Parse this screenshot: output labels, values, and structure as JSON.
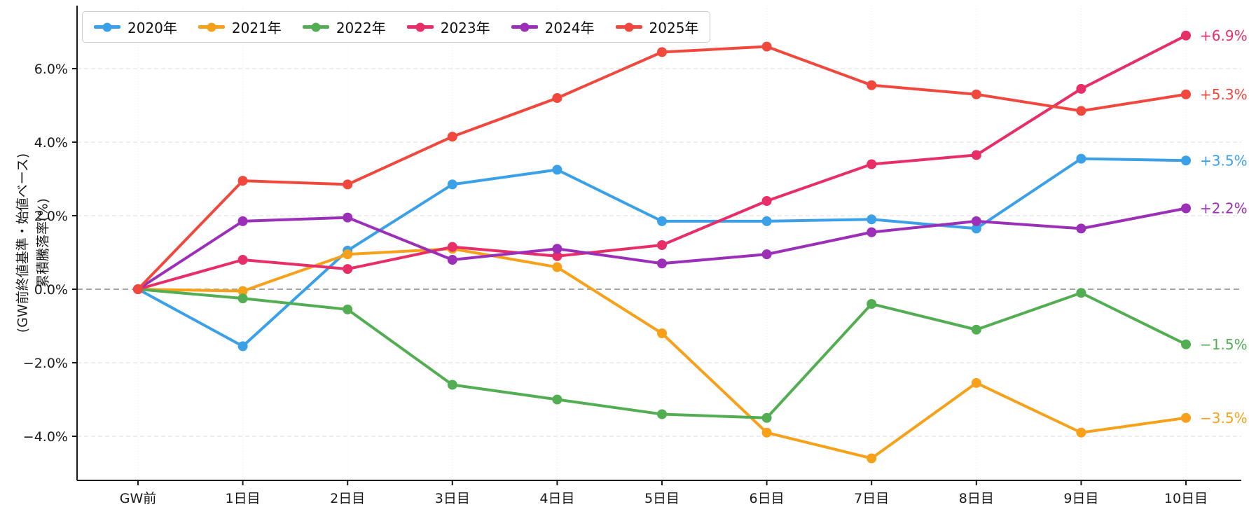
{
  "chart_data": {
    "type": "line",
    "title": "",
    "xlabel": "",
    "ylabel_line1": "累積騰落率(%)",
    "ylabel_line2": "(GW前終値基準・始値ベース)",
    "categories": [
      "GW前",
      "1日目",
      "2日目",
      "3日目",
      "4日目",
      "5日目",
      "6日目",
      "7日目",
      "8日目",
      "9日目",
      "10日目"
    ],
    "yticks": [
      6,
      4,
      2,
      0,
      -2,
      -4
    ],
    "ytick_labels": [
      "6.0%",
      "4.0%",
      "2.0%",
      "0.0%",
      "−2.0%",
      "−4.0%"
    ],
    "ylim": [
      -5.2,
      7.7
    ],
    "grid": true,
    "zero_line": true,
    "legend_position": "top-left",
    "series": [
      {
        "name": "2020年",
        "color": "#3AA0E8",
        "end_label": "+3.5%",
        "values": [
          0.0,
          -1.55,
          1.05,
          2.85,
          3.25,
          1.85,
          1.85,
          1.9,
          1.65,
          3.55,
          3.5
        ]
      },
      {
        "name": "2021年",
        "color": "#F7A11A",
        "end_label": "−3.5%",
        "values": [
          0.0,
          -0.05,
          0.95,
          1.1,
          0.6,
          -1.2,
          -3.9,
          -4.6,
          -2.55,
          -3.9,
          -3.5
        ]
      },
      {
        "name": "2022年",
        "color": "#53AE53",
        "end_label": "−1.5%",
        "values": [
          0.0,
          -0.25,
          -0.55,
          -2.6,
          -3.0,
          -3.4,
          -3.5,
          -0.4,
          -1.1,
          -0.1,
          -1.5
        ]
      },
      {
        "name": "2023年",
        "color": "#E72E66",
        "end_label": "+6.9%",
        "values": [
          0.0,
          0.8,
          0.55,
          1.15,
          0.9,
          1.2,
          2.4,
          3.4,
          3.65,
          5.45,
          6.9
        ]
      },
      {
        "name": "2024年",
        "color": "#9B2FB8",
        "end_label": "+2.2%",
        "values": [
          0.0,
          1.85,
          1.95,
          0.8,
          1.1,
          0.7,
          0.95,
          1.55,
          1.85,
          1.65,
          2.2
        ]
      },
      {
        "name": "2025年",
        "color": "#F0483C",
        "end_label": "+5.3%",
        "values": [
          0.0,
          2.95,
          2.85,
          4.15,
          5.2,
          6.45,
          6.6,
          5.55,
          5.3,
          4.85,
          5.3
        ]
      }
    ],
    "colors": {
      "axis": "#1a1a1a",
      "grid_major": "#dcdcdc",
      "grid_vertical": "#ececec",
      "zero_line": "#999999",
      "background": "#ffffff"
    }
  }
}
